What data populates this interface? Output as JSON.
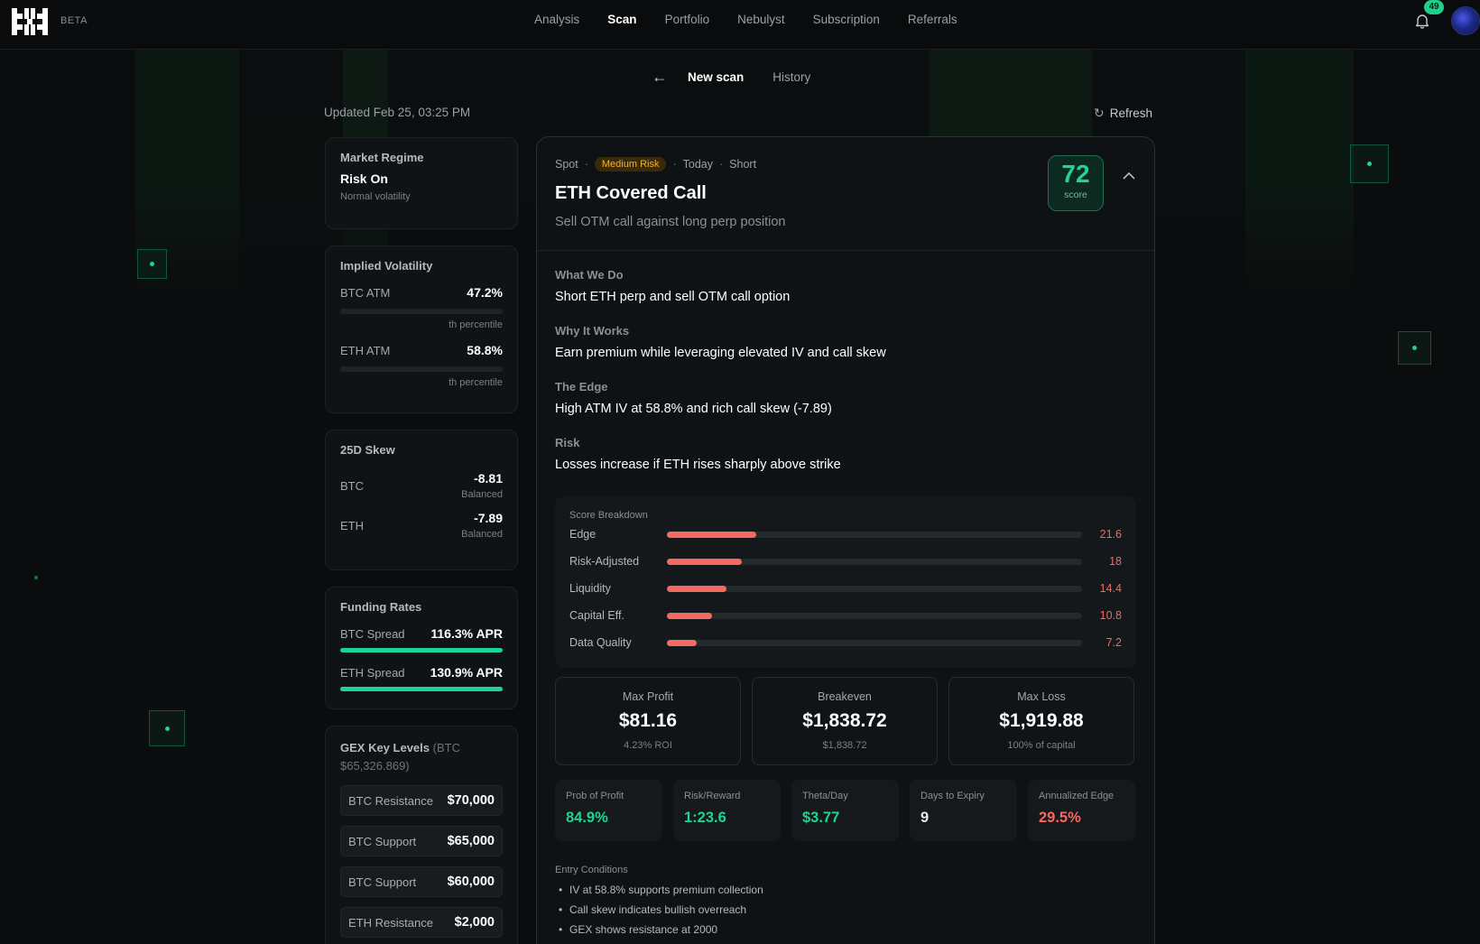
{
  "app": {
    "badge": "BETA",
    "notifications": "49"
  },
  "nav": {
    "items": [
      "Analysis",
      "Scan",
      "Portfolio",
      "Nebulyst",
      "Subscription",
      "Referrals"
    ],
    "active": "Scan"
  },
  "subnav": {
    "new_scan": "New scan",
    "history": "History"
  },
  "header": {
    "updated": "Updated Feb 25, 03:25 PM",
    "refresh": "Refresh"
  },
  "market_regime": {
    "title": "Market Regime",
    "value": "Risk On",
    "sub": "Normal volatility"
  },
  "implied_vol": {
    "title": "Implied Volatility",
    "rows": [
      {
        "label": "BTC ATM",
        "value": "47.2%",
        "note": "th percentile"
      },
      {
        "label": "ETH ATM",
        "value": "58.8%",
        "note": "th percentile"
      }
    ]
  },
  "skew": {
    "title": "25D Skew",
    "rows": [
      {
        "label": "BTC",
        "value": "-8.81",
        "note": "Balanced"
      },
      {
        "label": "ETH",
        "value": "-7.89",
        "note": "Balanced"
      }
    ]
  },
  "funding": {
    "title": "Funding Rates",
    "rows": [
      {
        "label": "BTC Spread",
        "value": "116.3% APR"
      },
      {
        "label": "ETH Spread",
        "value": "130.9% APR"
      }
    ]
  },
  "gex": {
    "title": "GEX Key Levels",
    "sub": "(BTC $65,326.869)",
    "levels": [
      {
        "label": "BTC Resistance",
        "value": "$70,000"
      },
      {
        "label": "BTC Support",
        "value": "$65,000"
      },
      {
        "label": "BTC Support",
        "value": "$60,000"
      },
      {
        "label": "ETH Resistance",
        "value": "$2,000"
      }
    ]
  },
  "strategy": {
    "meta": [
      "Spot",
      "Medium Risk",
      "Today",
      "Short"
    ],
    "title": "ETH Covered Call",
    "subtitle": "Sell OTM call against long perp position",
    "score": "72",
    "score_label": "score",
    "sections": [
      {
        "heading": "What We Do",
        "text": "Short ETH perp and sell OTM call option"
      },
      {
        "heading": "Why It Works",
        "text": "Earn premium while leveraging elevated IV and call skew"
      },
      {
        "heading": "The Edge",
        "text": "High ATM IV at 58.8% and rich call skew (-7.89)"
      },
      {
        "heading": "Risk",
        "text": "Losses increase if ETH rises sharply above strike"
      }
    ],
    "breakdown": {
      "title": "Score Breakdown",
      "max": 100,
      "items": [
        {
          "label": "Edge",
          "value": 21.6,
          "display": "21.6"
        },
        {
          "label": "Risk-Adjusted",
          "value": 18,
          "display": "18"
        },
        {
          "label": "Liquidity",
          "value": 14.4,
          "display": "14.4"
        },
        {
          "label": "Capital Eff.",
          "value": 10.8,
          "display": "10.8"
        },
        {
          "label": "Data Quality",
          "value": 7.2,
          "display": "7.2"
        }
      ]
    },
    "kpis": [
      {
        "label": "Max Profit",
        "value": "$81.16",
        "sub": "4.23% ROI"
      },
      {
        "label": "Breakeven",
        "value": "$1,838.72",
        "sub": "$1,838.72"
      },
      {
        "label": "Max Loss",
        "value": "$1,919.88",
        "sub": "100% of capital"
      }
    ],
    "stats": [
      {
        "label": "Prob of Profit",
        "value": "84.9%",
        "tone": "green"
      },
      {
        "label": "Risk/Reward",
        "value": "1:23.6",
        "tone": "green"
      },
      {
        "label": "Theta/Day",
        "value": "$3.77",
        "tone": "green"
      },
      {
        "label": "Days to Expiry",
        "value": "9",
        "tone": "white"
      },
      {
        "label": "Annualized Edge",
        "value": "29.5%",
        "tone": "red"
      }
    ],
    "entry": {
      "title": "Entry Conditions",
      "items": [
        "IV at 58.8% supports premium collection",
        "Call skew indicates bullish overreach",
        "GEX shows resistance at 2000"
      ]
    }
  },
  "colors": {
    "accent": "#1fd590",
    "danger": "#f26a63",
    "warning": "#f1b32b"
  }
}
